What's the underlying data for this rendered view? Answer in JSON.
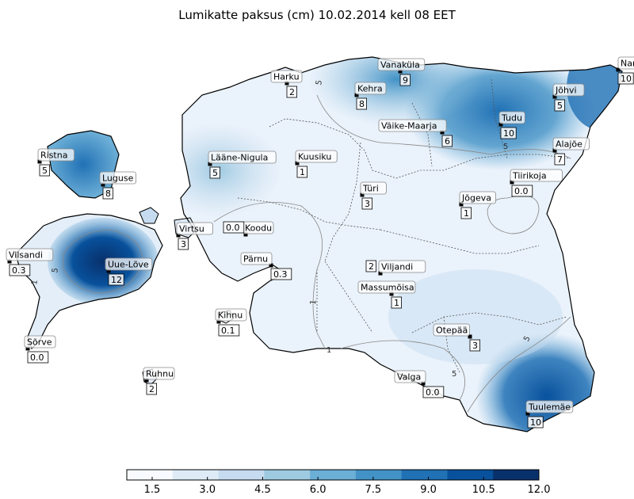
{
  "title": "Lumikatte paksus (cm) 10.02.2014 kell 08 EET",
  "colorbar": {
    "ticks": [
      "1.5",
      "3.0",
      "4.5",
      "6.0",
      "7.5",
      "9.0",
      "10.5",
      "12.0"
    ],
    "colors": [
      "#f7fbff",
      "#deebf7",
      "#c6dbef",
      "#9ecae1",
      "#6baed6",
      "#4292c6",
      "#2171b5",
      "#08519c",
      "#08306b"
    ]
  },
  "stations": [
    {
      "name": "Narva",
      "value": "10"
    },
    {
      "name": "Vanaküla",
      "value": "9"
    },
    {
      "name": "Harku",
      "value": "2"
    },
    {
      "name": "Kehra",
      "value": "8"
    },
    {
      "name": "Jõhvi",
      "value": "5"
    },
    {
      "name": "Tudu",
      "value": "10"
    },
    {
      "name": "Väike-Maarja",
      "value": "6"
    },
    {
      "name": "Alajõe",
      "value": "7"
    },
    {
      "name": "Ristna",
      "value": "5"
    },
    {
      "name": "Lääne-Nigula",
      "value": "5"
    },
    {
      "name": "Kuusiku",
      "value": "1"
    },
    {
      "name": "Tiirikoja",
      "value": "0.0"
    },
    {
      "name": "Luguse",
      "value": "8"
    },
    {
      "name": "Türi",
      "value": "3"
    },
    {
      "name": "Jõgeva",
      "value": "1"
    },
    {
      "name": "Virtsu",
      "value": "3"
    },
    {
      "name": "Koodu",
      "value": "0.0"
    },
    {
      "name": "Vilsandi",
      "value": "0.3"
    },
    {
      "name": "Uue-Lõve",
      "value": "12"
    },
    {
      "name": "Pärnu",
      "value": "0.3"
    },
    {
      "name": "Viljandi",
      "value": "2"
    },
    {
      "name": "Massumõisa",
      "value": "1"
    },
    {
      "name": "Kihnu",
      "value": "0.1"
    },
    {
      "name": "Otepää",
      "value": "3"
    },
    {
      "name": "Sõrve",
      "value": "0.0"
    },
    {
      "name": "Ruhnu",
      "value": "2"
    },
    {
      "name": "Valga",
      "value": "0.0"
    },
    {
      "name": "Tuulemäe",
      "value": "10"
    }
  ],
  "isolines": [
    "5",
    "5",
    "5",
    "5",
    "1",
    "1",
    "1",
    "5"
  ]
}
